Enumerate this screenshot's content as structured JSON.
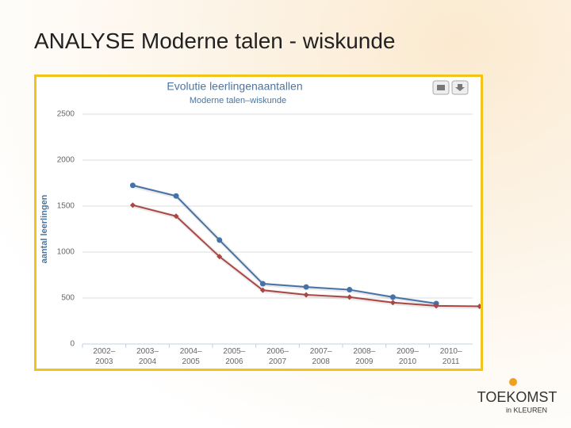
{
  "slide_title": "ANALYSE Moderne talen - wiskunde",
  "chart_data": {
    "type": "line",
    "title": "Evolutie leerlingenaantallen",
    "subtitle": "Moderne talen–wiskunde",
    "y_label": "aantal leerlingen",
    "categories": [
      "2002–2003",
      "2003–2004",
      "2004–2005",
      "2005–2006",
      "2006–2007",
      "2007–2008",
      "2008–2009",
      "2009–2010",
      "2010–2011"
    ],
    "series": [
      {
        "color": "#4572a7",
        "marker": "circle",
        "values": [
          1725,
          1610,
          1130,
          655,
          620,
          590,
          510,
          440,
          null
        ]
      },
      {
        "color": "#aa4643",
        "marker": "diamond",
        "values": [
          1510,
          1390,
          950,
          585,
          535,
          510,
          450,
          415,
          410
        ]
      }
    ],
    "ylim": [
      0,
      2500
    ],
    "yticks": [
      0,
      500,
      1000,
      1500,
      2000,
      2500
    ],
    "grid": true
  },
  "logo": {
    "brand": "TOEKOMST",
    "tagline": "in KLEUREN"
  }
}
